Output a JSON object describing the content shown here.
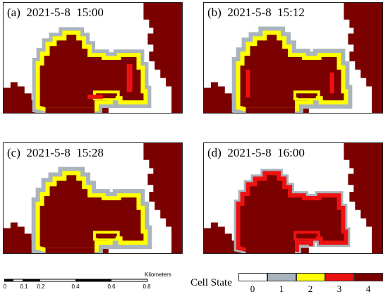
{
  "panels": [
    {
      "id": "a",
      "label": "(a)  2021-5-8  15:00"
    },
    {
      "id": "b",
      "label": "(b)  2021-5-8  15:12"
    },
    {
      "id": "c",
      "label": "(c)  2021-5-8  15:28"
    },
    {
      "id": "d",
      "label": "(d)  2021-5-8  16:00"
    }
  ],
  "scale": {
    "unit": "Kilometers",
    "ticks": [
      "0",
      "0.1",
      "0.2",
      "0.4",
      "0.6",
      "0.8"
    ]
  },
  "legend": {
    "title": "Cell State",
    "states": [
      {
        "value": "0",
        "color": "#ffffff"
      },
      {
        "value": "1",
        "color": "#a9b4bd"
      },
      {
        "value": "2",
        "color": "#ffff00"
      },
      {
        "value": "3",
        "color": "#ee1111"
      },
      {
        "value": "4",
        "color": "#7b0000"
      }
    ]
  },
  "colors": {
    "burned": "#7b0000",
    "burning": "#ee1111",
    "front": "#ffff00",
    "ignited": "#a9b4bd",
    "unburned": "#ffffff"
  }
}
